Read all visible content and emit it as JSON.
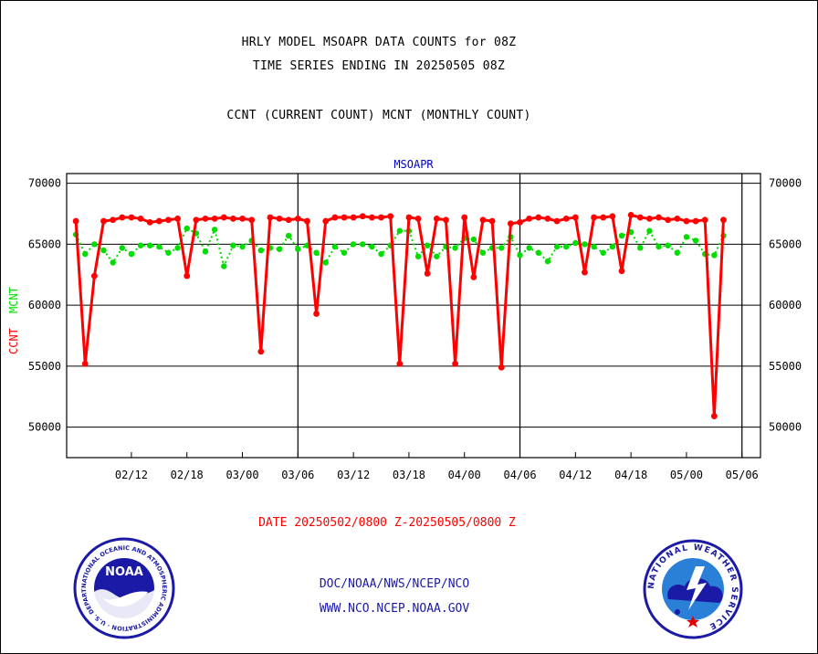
{
  "titles": {
    "line1": "HRLY MODEL MSOAPR DATA COUNTS for 08Z",
    "line2": "TIME SERIES ENDING IN 20250505 08Z",
    "line3": "CCNT (CURRENT COUNT) MCNT (MONTHLY COUNT)"
  },
  "footer": {
    "date_range": "DATE 20250502/0800 Z-20250505/0800 Z",
    "org": "DOC/NOAA/NWS/NCEP/NCO",
    "url": "WWW.NCO.NCEP.NOAA.GOV"
  },
  "logos": {
    "noaa_ring_text": "NATIONAL OCEANIC AND ATMOSPHERIC ADMINISTRATION · U.S. DEPARTMENT OF COMMERCE",
    "noaa_center": "NOAA",
    "nws_ring_text": "NATIONAL WEATHER SERVICE"
  },
  "colors": {
    "ccnt": "#ff0000",
    "mcnt": "#00dd00",
    "panel_label": "#0000cc",
    "grid": "#000000"
  },
  "chart_data": {
    "type": "line",
    "title": "MSOAPR",
    "ylabel_ccnt": "CCNT",
    "ylabel_mcnt": "MCNT",
    "ylim": [
      47500,
      70800
    ],
    "yticks": [
      50000,
      55000,
      60000,
      65000,
      70000
    ],
    "x_tick_labels": [
      "02/12",
      "02/18",
      "03/00",
      "03/06",
      "03/12",
      "03/18",
      "04/00",
      "04/06",
      "04/12",
      "04/18",
      "05/00",
      "05/06"
    ],
    "x_label_hour_offsets": [
      4,
      10,
      16,
      22,
      28,
      34,
      40,
      46,
      52,
      58,
      64,
      70
    ],
    "day_boundary_hours": [
      22,
      46,
      70
    ],
    "x_hour_range": [
      -3,
      72
    ],
    "grid": true,
    "legend": "left-vertical",
    "series": [
      {
        "name": "CCNT",
        "values": [
          66900,
          55200,
          62400,
          66900,
          67000,
          67200,
          67200,
          67100,
          66800,
          66900,
          67000,
          67100,
          62400,
          67000,
          67100,
          67100,
          67200,
          67100,
          67100,
          67000,
          56200,
          67200,
          67100,
          67000,
          67100,
          66900,
          59300,
          66900,
          67200,
          67200,
          67200,
          67300,
          67200,
          67200,
          67300,
          55200,
          67200,
          67100,
          62600,
          67100,
          67000,
          55200,
          67200,
          62300,
          67000,
          66900,
          54900,
          66700,
          66800,
          67100,
          67200,
          67100,
          66900,
          67100,
          67200,
          62700,
          67200,
          67200,
          67300,
          62800,
          67400,
          67200,
          67100,
          67200,
          67000,
          67100,
          66900,
          66900,
          67000,
          50900,
          67000
        ]
      },
      {
        "name": "MCNT",
        "values": [
          65800,
          64200,
          65000,
          64500,
          63500,
          64700,
          64200,
          64900,
          64900,
          64800,
          64300,
          64700,
          66300,
          65900,
          64400,
          66200,
          63200,
          64900,
          64800,
          65300,
          64500,
          64700,
          64600,
          65700,
          64600,
          64900,
          64300,
          63500,
          64800,
          64300,
          65000,
          65000,
          64800,
          64200,
          64900,
          66100,
          66100,
          64000,
          64900,
          64000,
          64800,
          64700,
          65500,
          65400,
          64300,
          64700,
          64700,
          65600,
          64100,
          64700,
          64300,
          63600,
          64800,
          64800,
          65100,
          65000,
          64800,
          64300,
          64800,
          65700,
          66000,
          64700,
          66100,
          64800,
          64900,
          64300,
          65600,
          65300,
          64200,
          64100,
          65700
        ]
      }
    ]
  }
}
